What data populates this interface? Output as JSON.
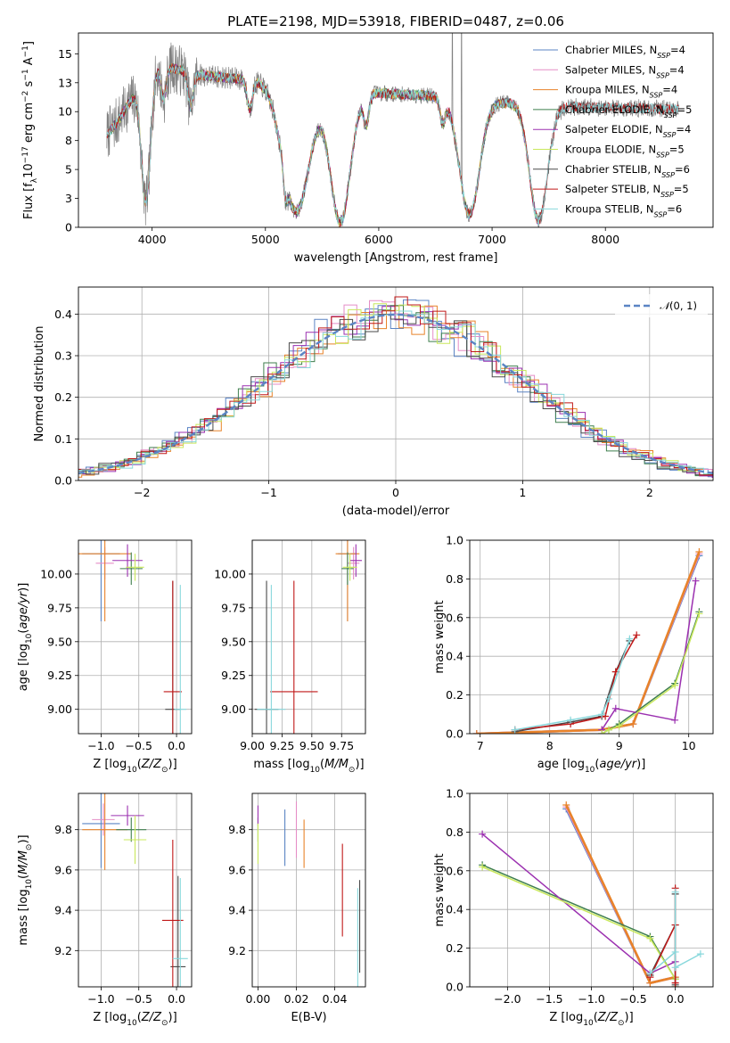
{
  "figure": {
    "title": "PLATE=2198, MJD=53918, FIBERID=0487, z=0.06"
  },
  "models": [
    {
      "name": "Chabrier MILES, N$SSP$=4",
      "label": "Chabrier MILES, N",
      "sub": "SSP",
      "n": "=4",
      "color": "#5b84c4"
    },
    {
      "name": "Salpeter MILES, N$SSP$=4",
      "label": "Salpeter MILES, N",
      "sub": "SSP",
      "n": "=4",
      "color": "#e58ec6"
    },
    {
      "name": "Kroupa MILES, N$SSP$=4",
      "label": "Kroupa MILES, N",
      "sub": "SSP",
      "n": "=4",
      "color": "#e8832a"
    },
    {
      "name": "Chabrier ELODIE, N$SSP$=5",
      "label": "Chabrier ELODIE, N",
      "sub": "SSP",
      "n": "=5",
      "color": "#3f7f4e"
    },
    {
      "name": "Salpeter ELODIE, N$SSP$=4",
      "label": "Salpeter ELODIE, N",
      "sub": "SSP",
      "n": "=4",
      "color": "#9b30b0"
    },
    {
      "name": "Kroupa ELODIE, N$SSP$=5",
      "label": "Kroupa ELODIE, N",
      "sub": "SSP",
      "n": "=5",
      "color": "#c9e85c"
    },
    {
      "name": "Chabrier STELIB, N$SSP$=6",
      "label": "Chabrier STELIB, N",
      "sub": "SSP",
      "n": "=6",
      "color": "#4a4a4a"
    },
    {
      "name": "Salpeter STELIB, N$SSP$=5",
      "label": "Salpeter STELIB, N",
      "sub": "SSP",
      "n": "=5",
      "color": "#c01818"
    },
    {
      "name": "Kroupa STELIB, N$SSP$=6",
      "label": "Kroupa STELIB, N",
      "sub": "SSP",
      "n": "=6",
      "color": "#88d8dc"
    }
  ],
  "chart_data": [
    {
      "id": "spectrum",
      "type": "line",
      "xlabel": "wavelength [Angstrom, rest frame]",
      "ylabel": "Flux [f_λ 10^-17 erg cm^-2 s^-1 A^-1]",
      "xlim": [
        3350,
        8950
      ],
      "ylim": [
        0,
        16.8
      ],
      "xticks": [
        4000,
        5000,
        6000,
        7000,
        8000
      ],
      "yticks": [
        0.0,
        2.5,
        5.0,
        7.5,
        10.0,
        12.5,
        15.0
      ],
      "data_range": [
        3600,
        8650
      ],
      "data_color": "#808080",
      "continuum": {
        "x": [
          3600,
          3700,
          3800,
          3900,
          4000,
          4100,
          4200,
          4400,
          4700,
          5000,
          5300,
          5600,
          6000,
          6400,
          6800,
          7100,
          7400,
          7800,
          8200,
          8650
        ],
        "y": [
          8.0,
          9.2,
          10.8,
          12.0,
          13.9,
          14.1,
          13.7,
          13.2,
          12.9,
          12.6,
          12.3,
          12.0,
          11.6,
          11.4,
          11.1,
          10.8,
          10.6,
          10.4,
          10.3,
          10.2
        ]
      },
      "grid": false,
      "legend_position": "upper-right"
    },
    {
      "id": "residuals",
      "type": "step",
      "xlabel": "(data-model)/error",
      "ylabel": "Normed distribution",
      "xlim": [
        -2.5,
        2.5
      ],
      "ylim": [
        0,
        0.465
      ],
      "xticks": [
        -2,
        -1,
        0,
        1,
        2
      ],
      "yticks": [
        0.0,
        0.1,
        0.2,
        0.3,
        0.4
      ],
      "bin_width": 0.1,
      "reference": {
        "label": "N(0,1)",
        "mean": 0,
        "sigma": 1,
        "color": "#5b84c4"
      },
      "grid": true,
      "legend_position": "upper-right"
    },
    {
      "id": "age-vs-Z",
      "type": "errorbar",
      "xlabel": "Z [log10(Z/Z⊙)]",
      "ylabel": "age [log10(age/yr)]",
      "xlim": [
        -1.3,
        0.2
      ],
      "ylim": [
        8.82,
        10.25
      ],
      "xticks": [
        -1.0,
        -0.5,
        0.0
      ],
      "yticks": [
        9.0,
        9.25,
        9.5,
        9.75,
        10.0
      ],
      "points": [
        {
          "m": 0,
          "x": -1.0,
          "y": 10.15,
          "xerr": 0.25,
          "yerr": 0.5
        },
        {
          "m": 1,
          "x": -0.95,
          "y": 10.08,
          "xerr": 0.12,
          "yerr": 0.12
        },
        {
          "m": 2,
          "x": -0.95,
          "y": 10.15,
          "xerr": 0.35,
          "yerr": 0.5
        },
        {
          "m": 3,
          "x": -0.6,
          "y": 10.04,
          "xerr": 0.15,
          "yerr": 0.12
        },
        {
          "m": 4,
          "x": -0.65,
          "y": 10.1,
          "xerr": 0.2,
          "yerr": 0.12
        },
        {
          "m": 5,
          "x": -0.55,
          "y": 10.05,
          "xerr": 0.12,
          "yerr": 0.1
        },
        {
          "m": 6,
          "x": -0.05,
          "y": 9.0,
          "xerr": 0.1,
          "yerr": 0.95
        },
        {
          "m": 7,
          "x": -0.05,
          "y": 9.13,
          "xerr": 0.12,
          "yerr": 0.82
        },
        {
          "m": 8,
          "x": 0.05,
          "y": 9.0,
          "xerr": 0.08,
          "yerr": 0.92
        }
      ]
    },
    {
      "id": "age-vs-mass",
      "type": "errorbar",
      "xlabel": "mass [log10(M/M⊙)]",
      "ylabel": "",
      "xlim": [
        9.0,
        9.95
      ],
      "ylim": [
        8.82,
        10.25
      ],
      "xticks": [
        9.0,
        9.25,
        9.5,
        9.75
      ],
      "yticks": [
        9.0,
        9.25,
        9.5,
        9.75,
        10.0
      ],
      "points": [
        {
          "m": 0,
          "x": 9.8,
          "y": 10.15,
          "xerr": 0.08,
          "yerr": 0.5
        },
        {
          "m": 1,
          "x": 9.85,
          "y": 10.08,
          "xerr": 0.05,
          "yerr": 0.12
        },
        {
          "m": 2,
          "x": 9.8,
          "y": 10.15,
          "xerr": 0.1,
          "yerr": 0.5
        },
        {
          "m": 3,
          "x": 9.8,
          "y": 10.04,
          "xerr": 0.05,
          "yerr": 0.12
        },
        {
          "m": 4,
          "x": 9.87,
          "y": 10.1,
          "xerr": 0.05,
          "yerr": 0.12
        },
        {
          "m": 5,
          "x": 9.82,
          "y": 10.05,
          "xerr": 0.06,
          "yerr": 0.1
        },
        {
          "m": 6,
          "x": 9.12,
          "y": 9.0,
          "xerr": 0.1,
          "yerr": 0.95
        },
        {
          "m": 7,
          "x": 9.35,
          "y": 9.13,
          "xerr": 0.2,
          "yerr": 0.82
        },
        {
          "m": 8,
          "x": 9.16,
          "y": 9.0,
          "xerr": 0.12,
          "yerr": 0.92
        }
      ]
    },
    {
      "id": "mass-weight-vs-age",
      "type": "line",
      "xlabel": "age [log10(age/yr)]",
      "ylabel": "mass weight",
      "xlim": [
        6.85,
        10.35
      ],
      "ylim": [
        0,
        1.0
      ],
      "xticks": [
        7,
        8,
        9,
        10
      ],
      "yticks": [
        0.0,
        0.2,
        0.4,
        0.6,
        0.8,
        1.0
      ],
      "series": [
        {
          "m": 0,
          "x": [
            6.95,
            8.75,
            9.2,
            10.15
          ],
          "y": [
            0.0,
            0.02,
            0.05,
            0.92
          ]
        },
        {
          "m": 1,
          "x": [
            6.95,
            8.75,
            9.2,
            10.15
          ],
          "y": [
            0.0,
            0.02,
            0.05,
            0.93
          ]
        },
        {
          "m": 2,
          "x": [
            6.95,
            8.75,
            9.2,
            10.15
          ],
          "y": [
            0.0,
            0.02,
            0.05,
            0.94
          ]
        },
        {
          "m": 3,
          "x": [
            8.75,
            8.85,
            9.0,
            9.8,
            10.15
          ],
          "y": [
            0.0,
            0.02,
            0.05,
            0.26,
            0.63
          ]
        },
        {
          "m": 4,
          "x": [
            8.75,
            8.95,
            9.8,
            10.1
          ],
          "y": [
            0.02,
            0.13,
            0.07,
            0.79
          ]
        },
        {
          "m": 5,
          "x": [
            8.75,
            8.85,
            9.0,
            9.8,
            10.15
          ],
          "y": [
            0.0,
            0.02,
            0.04,
            0.25,
            0.62
          ]
        },
        {
          "m": 6,
          "x": [
            7.5,
            8.3,
            8.75,
            8.95,
            9.15
          ],
          "y": [
            0.01,
            0.06,
            0.09,
            0.32,
            0.48
          ]
        },
        {
          "m": 7,
          "x": [
            7.5,
            8.3,
            8.8,
            8.95,
            9.25
          ],
          "y": [
            0.02,
            0.05,
            0.09,
            0.32,
            0.51
          ]
        },
        {
          "m": 8,
          "x": [
            7.5,
            8.3,
            8.75,
            8.85,
            9.15
          ],
          "y": [
            0.02,
            0.07,
            0.1,
            0.18,
            0.49
          ]
        }
      ]
    },
    {
      "id": "mass-vs-Z",
      "type": "errorbar",
      "xlabel": "Z [log10(Z/Z⊙)]",
      "ylabel": "mass [log10(M/M⊙)]",
      "xlim": [
        -1.3,
        0.2
      ],
      "ylim": [
        9.02,
        9.98
      ],
      "xticks": [
        -1.0,
        -0.5,
        0.0
      ],
      "yticks": [
        9.2,
        9.4,
        9.6,
        9.8
      ],
      "points": [
        {
          "m": 0,
          "x": -1.0,
          "y": 9.83,
          "xerr": 0.25,
          "yerr": 0.22
        },
        {
          "m": 1,
          "x": -0.97,
          "y": 9.85,
          "xerr": 0.15,
          "yerr": 0.08
        },
        {
          "m": 2,
          "x": -0.95,
          "y": 9.8,
          "xerr": 0.3,
          "yerr": 0.2
        },
        {
          "m": 3,
          "x": -0.6,
          "y": 9.8,
          "xerr": 0.2,
          "yerr": 0.06
        },
        {
          "m": 4,
          "x": -0.65,
          "y": 9.87,
          "xerr": 0.22,
          "yerr": 0.05
        },
        {
          "m": 5,
          "x": -0.55,
          "y": 9.75,
          "xerr": 0.15,
          "yerr": 0.12
        },
        {
          "m": 6,
          "x": 0.02,
          "y": 9.12,
          "xerr": 0.1,
          "yerr": 0.45
        },
        {
          "m": 7,
          "x": -0.05,
          "y": 9.35,
          "xerr": 0.14,
          "yerr": 0.4
        },
        {
          "m": 8,
          "x": 0.05,
          "y": 9.16,
          "xerr": 0.1,
          "yerr": 0.4
        }
      ]
    },
    {
      "id": "mass-vs-EBV",
      "type": "errorbar",
      "xlabel": "E(B-V)",
      "ylabel": "",
      "xlim": [
        -0.003,
        0.056
      ],
      "ylim": [
        9.02,
        9.98
      ],
      "xticks": [
        0.0,
        0.02,
        0.04
      ],
      "yticks": [
        9.2,
        9.4,
        9.6,
        9.8
      ],
      "points": [
        {
          "m": 0,
          "x": 0.014,
          "y": 9.76,
          "xerr": 0,
          "yerr": 0.14
        },
        {
          "m": 1,
          "x": 0.02,
          "y": 9.8,
          "xerr": 0,
          "yerr": 0.14
        },
        {
          "m": 2,
          "x": 0.024,
          "y": 9.73,
          "xerr": 0,
          "yerr": 0.12
        },
        {
          "m": 3,
          "x": 0.0,
          "y": 9.8,
          "xerr": 0,
          "yerr": 0.06
        },
        {
          "m": 4,
          "x": 0.0,
          "y": 9.87,
          "xerr": 0,
          "yerr": 0.05
        },
        {
          "m": 5,
          "x": 0.0,
          "y": 9.73,
          "xerr": 0,
          "yerr": 0.1
        },
        {
          "m": 6,
          "x": 0.053,
          "y": 9.32,
          "xerr": 0,
          "yerr": 0.23
        },
        {
          "m": 7,
          "x": 0.044,
          "y": 9.5,
          "xerr": 0,
          "yerr": 0.23
        },
        {
          "m": 8,
          "x": 0.052,
          "y": 9.25,
          "xerr": 0,
          "yerr": 0.26
        }
      ]
    },
    {
      "id": "mass-weight-vs-Z",
      "type": "line",
      "xlabel": "Z [log10(Z/Z⊙)]",
      "ylabel": "mass weight",
      "xlim": [
        -2.45,
        0.45
      ],
      "ylim": [
        0,
        1.0
      ],
      "xticks": [
        -2.0,
        -1.5,
        -1.0,
        -0.5,
        0.0
      ],
      "yticks": [
        0.0,
        0.2,
        0.4,
        0.6,
        0.8,
        1.0
      ],
      "series": [
        {
          "m": 0,
          "x": [
            -1.3,
            -0.3,
            0.0
          ],
          "y": [
            0.92,
            0.02,
            0.05
          ]
        },
        {
          "m": 1,
          "x": [
            -1.3,
            -0.3,
            0.0
          ],
          "y": [
            0.93,
            0.02,
            0.05
          ]
        },
        {
          "m": 2,
          "x": [
            -1.3,
            -0.3,
            0.0
          ],
          "y": [
            0.94,
            0.02,
            0.05
          ]
        },
        {
          "m": 3,
          "x": [
            -2.3,
            -0.3,
            0.0,
            0.0
          ],
          "y": [
            0.63,
            0.26,
            0.04,
            0.0
          ]
        },
        {
          "m": 4,
          "x": [
            -2.3,
            -0.3,
            0.0,
            0.0
          ],
          "y": [
            0.79,
            0.07,
            0.13,
            0.0
          ]
        },
        {
          "m": 5,
          "x": [
            -2.3,
            -0.3,
            0.0,
            0.0
          ],
          "y": [
            0.62,
            0.25,
            0.04,
            0.0
          ]
        },
        {
          "m": 6,
          "x": [
            -0.3,
            0.0,
            0.0,
            0.0
          ],
          "y": [
            0.06,
            0.32,
            0.48,
            0.01
          ]
        },
        {
          "m": 7,
          "x": [
            -0.3,
            0.0,
            0.0,
            0.0
          ],
          "y": [
            0.05,
            0.32,
            0.51,
            0.02
          ]
        },
        {
          "m": 8,
          "x": [
            -0.3,
            0.0,
            0.0,
            0.0,
            0.3
          ],
          "y": [
            0.07,
            0.18,
            0.49,
            0.1,
            0.17
          ]
        }
      ]
    }
  ]
}
